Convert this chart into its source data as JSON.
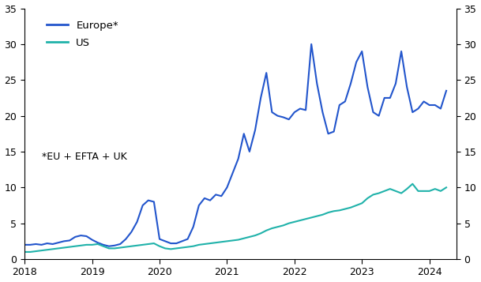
{
  "europe_color": "#2255CC",
  "us_color": "#20B2AA",
  "annotation": "*EU + EFTA + UK",
  "legend_europe": "Europe*",
  "legend_us": "US",
  "ylim": [
    0,
    35
  ],
  "yticks": [
    0,
    5,
    10,
    15,
    20,
    25,
    30,
    35
  ],
  "x_start_year": 2018,
  "xtick_years": [
    2018,
    2019,
    2020,
    2021,
    2022,
    2023,
    2024
  ],
  "europe_data": [
    2.0,
    2.0,
    2.1,
    2.0,
    2.2,
    2.1,
    2.3,
    2.5,
    2.6,
    3.1,
    3.3,
    3.2,
    2.7,
    2.3,
    2.0,
    1.8,
    1.9,
    2.1,
    2.8,
    3.8,
    5.2,
    7.5,
    8.2,
    8.0,
    2.8,
    2.5,
    2.2,
    2.2,
    2.5,
    2.8,
    4.5,
    7.5,
    8.5,
    8.2,
    9.0,
    8.8,
    10.0,
    12.0,
    14.0,
    17.5,
    15.0,
    18.0,
    22.5,
    26.0,
    20.5,
    20.0,
    19.8,
    19.5,
    20.5,
    21.0,
    20.8,
    30.0,
    24.5,
    20.5,
    17.5,
    17.8,
    21.5,
    22.0,
    24.5,
    27.5,
    29.0,
    24.0,
    20.5,
    20.0,
    22.5,
    22.5,
    24.5,
    29.0,
    24.0,
    20.5,
    21.0,
    22.0,
    21.5,
    21.5,
    21.0,
    23.5
  ],
  "us_data": [
    1.0,
    1.0,
    1.1,
    1.2,
    1.3,
    1.4,
    1.5,
    1.6,
    1.7,
    1.8,
    1.9,
    2.0,
    2.0,
    2.1,
    1.8,
    1.5,
    1.5,
    1.6,
    1.7,
    1.8,
    1.9,
    2.0,
    2.1,
    2.2,
    1.8,
    1.5,
    1.4,
    1.5,
    1.6,
    1.7,
    1.8,
    2.0,
    2.1,
    2.2,
    2.3,
    2.4,
    2.5,
    2.6,
    2.7,
    2.9,
    3.1,
    3.3,
    3.6,
    4.0,
    4.3,
    4.5,
    4.7,
    5.0,
    5.2,
    5.4,
    5.6,
    5.8,
    6.0,
    6.2,
    6.5,
    6.7,
    6.8,
    7.0,
    7.2,
    7.5,
    7.8,
    8.5,
    9.0,
    9.2,
    9.5,
    9.8,
    9.5,
    9.2,
    9.8,
    10.5,
    9.5,
    9.5,
    9.5,
    9.8,
    9.5,
    10.0
  ]
}
